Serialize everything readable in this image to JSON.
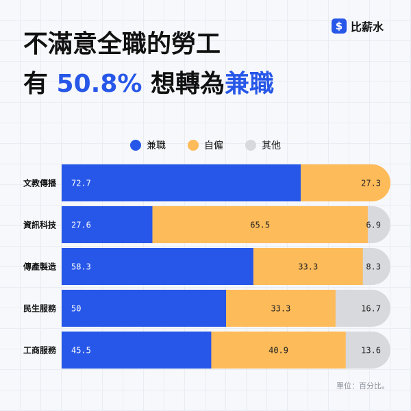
{
  "brand": {
    "name": "比薪水",
    "icon": "dollar-icon"
  },
  "title": {
    "line1": "不滿意全職的勞工",
    "line2_pre": "有 ",
    "line2_highlight": "50.8%",
    "line2_mid": " 想轉為",
    "line2_end": "兼職"
  },
  "colors": {
    "accent": "#2757e8",
    "part_time": "#2757e8",
    "self_employed": "#fdbb5a",
    "other": "#d8d9dc"
  },
  "unit_note": "單位：百分比。",
  "chart_data": {
    "type": "bar",
    "orientation": "horizontal",
    "stacked": true,
    "categories": [
      "文教傳播",
      "資訊科技",
      "傳產製造",
      "民生服務",
      "工商服務"
    ],
    "series": [
      {
        "name": "兼職",
        "color": "#2757e8",
        "values": [
          72.7,
          27.6,
          58.3,
          50,
          45.5
        ],
        "labels": [
          "72.7",
          "27.6",
          "58.3",
          "50",
          "45.5"
        ]
      },
      {
        "name": "自僱",
        "color": "#fdbb5a",
        "values": [
          27.3,
          65.5,
          33.3,
          33.3,
          40.9
        ],
        "labels": [
          "27.3",
          "65.5",
          "33.3",
          "33.3",
          "40.9"
        ]
      },
      {
        "name": "其他",
        "color": "#d8d9dc",
        "values": [
          0,
          6.9,
          8.3,
          16.7,
          13.6
        ],
        "labels": [
          "",
          "6.9",
          "8.3",
          "16.7",
          "13.6"
        ]
      }
    ],
    "xlim": [
      0,
      100
    ],
    "legend": "top-center"
  }
}
